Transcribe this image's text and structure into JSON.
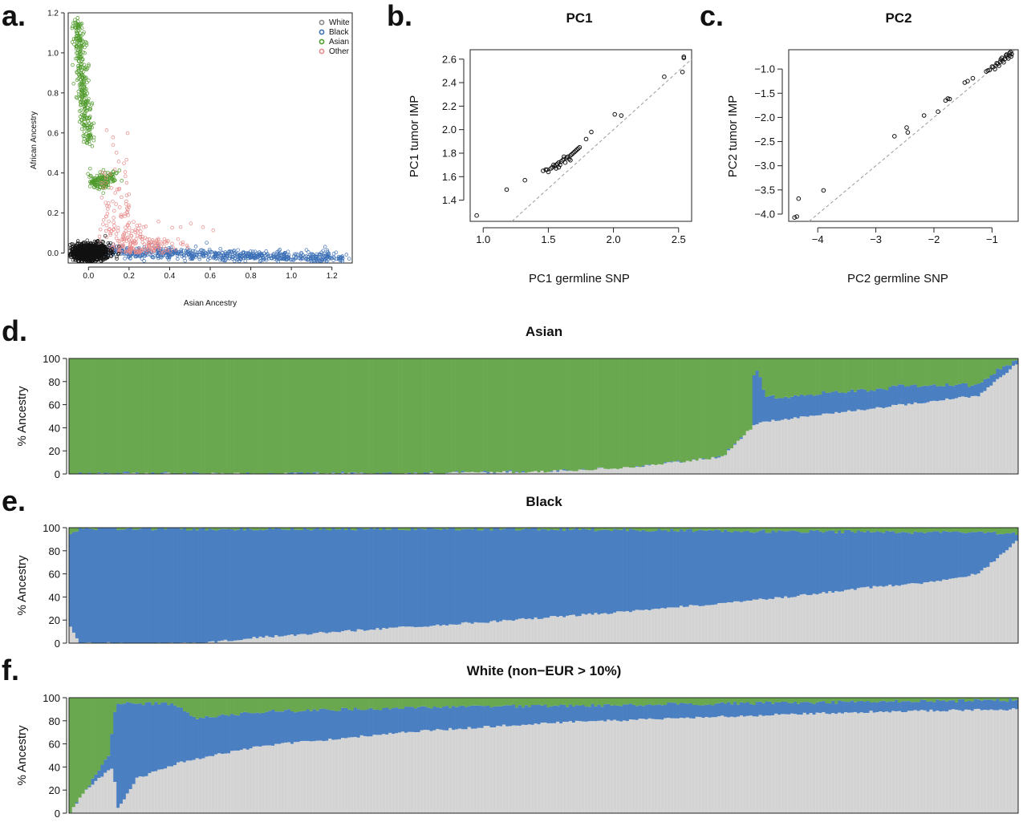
{
  "chart_data": [
    {
      "panel": "a.",
      "type": "scatter",
      "title": "",
      "xlabel": "Asian Ancestry",
      "ylabel": "African Ancestry",
      "xlim": [
        -0.1,
        1.3
      ],
      "ylim": [
        -0.05,
        1.2
      ],
      "xticks": [
        "0.0",
        "0.2",
        "0.4",
        "0.6",
        "0.8",
        "1.0",
        "1.2"
      ],
      "yticks": [
        "0.0",
        "0.2",
        "0.4",
        "0.6",
        "0.8",
        "1.0",
        "1.2"
      ],
      "xtick_values": [
        0,
        0.2,
        0.4,
        0.6,
        0.8,
        1.0,
        1.2
      ],
      "ytick_values": [
        0,
        0.2,
        0.4,
        0.6,
        0.8,
        1.0,
        1.2
      ],
      "legend": {
        "placement": "top-right",
        "entries": [
          "White",
          "Black",
          "Asian",
          "Other"
        ]
      },
      "colors": {
        "White": "#111111",
        "Black": "#3b6fb6",
        "Asian": "#4f9a2b",
        "Other": "#e88a8a"
      },
      "series": [
        {
          "name": "White",
          "shape": "cluster",
          "center": [
            0.0,
            0.0
          ],
          "spread": [
            0.05,
            0.025
          ],
          "count": 900
        },
        {
          "name": "Black",
          "shape": "arm",
          "from": [
            0.05,
            0.01
          ],
          "to": [
            1.27,
            -0.03
          ],
          "spread": 0.015,
          "count": 700
        },
        {
          "name": "Asian",
          "shape": "arm",
          "from": [
            -0.06,
            1.16
          ],
          "to": [
            0.0,
            0.55
          ],
          "spread": 0.015,
          "count": 300
        },
        {
          "name": "Asian",
          "shape": "arm",
          "from": [
            0.01,
            0.35
          ],
          "to": [
            0.12,
            0.38
          ],
          "spread": 0.02,
          "count": 150
        },
        {
          "name": "Other",
          "shape": "cluster",
          "center": [
            0.15,
            0.07
          ],
          "spread": [
            0.15,
            0.08
          ],
          "count": 260
        }
      ]
    },
    {
      "panel": "b.",
      "type": "scatter",
      "title": "PC1",
      "xlabel": "PC1 germline SNP",
      "ylabel": "PC1 tumor IMP",
      "xlim": [
        0.9,
        2.6
      ],
      "ylim": [
        1.22,
        2.68
      ],
      "xticks": [
        "1.0",
        "1.5",
        "2.0",
        "2.5"
      ],
      "yticks": [
        "1.4",
        "1.6",
        "1.8",
        "2.0",
        "2.2",
        "2.4",
        "2.6"
      ],
      "xtick_values": [
        1.0,
        1.5,
        2.0,
        2.5
      ],
      "ytick_values": [
        1.4,
        1.6,
        1.8,
        2.0,
        2.2,
        2.4,
        2.6
      ],
      "identity_line": true,
      "points": [
        [
          0.95,
          1.27
        ],
        [
          1.18,
          1.49
        ],
        [
          1.32,
          1.57
        ],
        [
          1.46,
          1.65
        ],
        [
          1.49,
          1.66
        ],
        [
          1.53,
          1.68
        ],
        [
          1.56,
          1.7
        ],
        [
          1.58,
          1.72
        ],
        [
          1.6,
          1.73
        ],
        [
          1.62,
          1.75
        ],
        [
          1.65,
          1.77
        ],
        [
          1.67,
          1.78
        ],
        [
          1.7,
          1.81
        ],
        [
          1.72,
          1.83
        ],
        [
          1.74,
          1.85
        ],
        [
          1.55,
          1.69
        ],
        [
          1.61,
          1.74
        ],
        [
          1.64,
          1.76
        ],
        [
          1.68,
          1.79
        ],
        [
          1.71,
          1.82
        ],
        [
          1.52,
          1.67
        ],
        [
          1.57,
          1.71
        ],
        [
          1.63,
          1.72
        ],
        [
          1.66,
          1.75
        ],
        [
          1.5,
          1.64
        ],
        [
          1.59,
          1.7
        ],
        [
          1.69,
          1.8
        ],
        [
          1.73,
          1.84
        ],
        [
          1.54,
          1.7
        ],
        [
          1.62,
          1.77
        ],
        [
          1.67,
          1.74
        ],
        [
          1.58,
          1.68
        ],
        [
          1.79,
          1.92
        ],
        [
          1.83,
          1.98
        ],
        [
          2.01,
          2.13
        ],
        [
          2.06,
          2.12
        ],
        [
          2.39,
          2.45
        ],
        [
          2.53,
          2.49
        ],
        [
          2.54,
          2.61
        ],
        [
          2.54,
          2.62
        ],
        [
          1.48,
          1.66
        ],
        [
          1.56,
          1.67
        ]
      ]
    },
    {
      "panel": "c.",
      "type": "scatter",
      "title": "PC2",
      "xlabel": "PC2 germline SNP",
      "ylabel": "PC2 tumor IMP",
      "xlim": [
        -4.5,
        -0.55
      ],
      "ylim": [
        -4.15,
        -0.6
      ],
      "xticks": [
        "−4",
        "−3",
        "−2",
        "−1"
      ],
      "yticks": [
        "−4.0",
        "−3.5",
        "−3.0",
        "−2.5",
        "−2.0",
        "−1.5",
        "−1.0"
      ],
      "xtick_values": [
        -4,
        -3,
        -2,
        -1
      ],
      "ytick_values": [
        -4.0,
        -3.5,
        -3.0,
        -2.5,
        -2.0,
        -1.5,
        -1.0
      ],
      "identity_line": true,
      "points": [
        [
          -4.4,
          -4.07
        ],
        [
          -4.36,
          -4.05
        ],
        [
          -4.33,
          -3.68
        ],
        [
          -3.9,
          -3.51
        ],
        [
          -2.68,
          -2.39
        ],
        [
          -2.47,
          -2.21
        ],
        [
          -2.45,
          -2.31
        ],
        [
          -2.17,
          -1.96
        ],
        [
          -1.93,
          -1.88
        ],
        [
          -1.8,
          -1.65
        ],
        [
          -1.76,
          -1.61
        ],
        [
          -1.73,
          -1.62
        ],
        [
          -1.47,
          -1.28
        ],
        [
          -1.42,
          -1.25
        ],
        [
          -1.33,
          -1.19
        ],
        [
          -1.1,
          -1.05
        ],
        [
          -1.04,
          -1.02
        ],
        [
          -0.98,
          -0.96
        ],
        [
          -0.94,
          -0.93
        ],
        [
          -0.9,
          -0.89
        ],
        [
          -0.86,
          -0.85
        ],
        [
          -0.82,
          -0.82
        ],
        [
          -0.78,
          -0.79
        ],
        [
          -0.74,
          -0.75
        ],
        [
          -0.7,
          -0.72
        ],
        [
          -0.66,
          -0.69
        ],
        [
          -0.95,
          -1.0
        ],
        [
          -0.88,
          -0.93
        ],
        [
          -0.8,
          -0.86
        ],
        [
          -0.72,
          -0.78
        ],
        [
          -0.67,
          -0.74
        ],
        [
          -0.85,
          -0.8
        ],
        [
          -0.76,
          -0.72
        ],
        [
          -1.0,
          -0.95
        ],
        [
          -0.92,
          -0.88
        ],
        [
          -0.7,
          -0.67
        ],
        [
          -1.07,
          -1.03
        ],
        [
          -0.83,
          -0.77
        ],
        [
          -0.75,
          -0.7
        ],
        [
          -0.68,
          -0.65
        ]
      ]
    },
    {
      "panel": "d.",
      "type": "bar",
      "stacked": true,
      "title": "Asian",
      "ylabel": "% Ancestry",
      "ylim": [
        0,
        100
      ],
      "yticks": [
        "0",
        "20",
        "40",
        "60",
        "80",
        "100"
      ],
      "ytick_values": [
        0,
        20,
        40,
        60,
        80,
        100
      ],
      "stack_order": [
        "White",
        "Black",
        "Asian"
      ],
      "colors": {
        "White": "#d3d3d3",
        "Black": "#4a7fc1",
        "Asian": "#6aa84f"
      },
      "bars": 300,
      "profile_white": [
        [
          0,
          0
        ],
        [
          0.34,
          0
        ],
        [
          0.5,
          2
        ],
        [
          0.6,
          6
        ],
        [
          0.69,
          15
        ],
        [
          0.72,
          40
        ],
        [
          0.73,
          45
        ],
        [
          0.85,
          57
        ],
        [
          0.96,
          68
        ],
        [
          1.0,
          95
        ]
      ],
      "profile_black": [
        [
          0,
          0
        ],
        [
          0.72,
          0
        ],
        [
          0.723,
          55
        ],
        [
          0.735,
          22
        ],
        [
          0.75,
          20
        ],
        [
          0.9,
          15
        ],
        [
          0.98,
          8
        ],
        [
          1.0,
          3
        ]
      ]
    },
    {
      "panel": "e.",
      "type": "bar",
      "stacked": true,
      "title": "Black",
      "ylabel": "% Ancestry",
      "ylim": [
        0,
        100
      ],
      "yticks": [
        "0",
        "20",
        "40",
        "60",
        "80",
        "100"
      ],
      "ytick_values": [
        0,
        20,
        40,
        60,
        80,
        100
      ],
      "stack_order": [
        "White",
        "Black",
        "Asian"
      ],
      "colors": {
        "White": "#d3d3d3",
        "Black": "#4a7fc1",
        "Asian": "#6aa84f"
      },
      "bars": 300,
      "profile_white": [
        [
          0,
          15
        ],
        [
          0.01,
          0
        ],
        [
          0.14,
          0
        ],
        [
          0.2,
          5
        ],
        [
          0.3,
          11
        ],
        [
          0.45,
          19
        ],
        [
          0.6,
          28
        ],
        [
          0.76,
          40
        ],
        [
          0.84,
          48
        ],
        [
          0.9,
          52
        ],
        [
          0.96,
          60
        ],
        [
          1.0,
          88
        ]
      ],
      "profile_asian": [
        [
          0,
          5
        ],
        [
          0.01,
          1
        ],
        [
          0.5,
          1
        ],
        [
          0.6,
          2
        ],
        [
          0.75,
          3
        ],
        [
          0.9,
          4
        ],
        [
          1.0,
          5
        ]
      ]
    },
    {
      "panel": "f.",
      "type": "bar",
      "stacked": true,
      "title": "White (non−EUR > 10%)",
      "ylabel": "% Ancestry",
      "ylim": [
        0,
        100
      ],
      "yticks": [
        "0",
        "20",
        "40",
        "60",
        "80",
        "100"
      ],
      "ytick_values": [
        0,
        20,
        40,
        60,
        80,
        100
      ],
      "stack_order": [
        "White",
        "Black",
        "Asian"
      ],
      "colors": {
        "White": "#d3d3d3",
        "Black": "#4a7fc1",
        "Asian": "#6aa84f"
      },
      "bars": 300,
      "profile_white": [
        [
          0,
          0
        ],
        [
          0.015,
          20
        ],
        [
          0.045,
          40
        ],
        [
          0.05,
          4
        ],
        [
          0.07,
          30
        ],
        [
          0.12,
          45
        ],
        [
          0.2,
          58
        ],
        [
          0.35,
          70
        ],
        [
          0.5,
          78
        ],
        [
          0.7,
          84
        ],
        [
          0.85,
          88
        ],
        [
          1.0,
          90
        ]
      ],
      "profile_asian": [
        [
          0,
          100
        ],
        [
          0.04,
          50
        ],
        [
          0.048,
          5
        ],
        [
          0.11,
          5
        ],
        [
          0.13,
          18
        ],
        [
          0.2,
          12
        ],
        [
          0.4,
          8
        ],
        [
          0.7,
          5
        ],
        [
          1.0,
          2
        ]
      ]
    }
  ]
}
